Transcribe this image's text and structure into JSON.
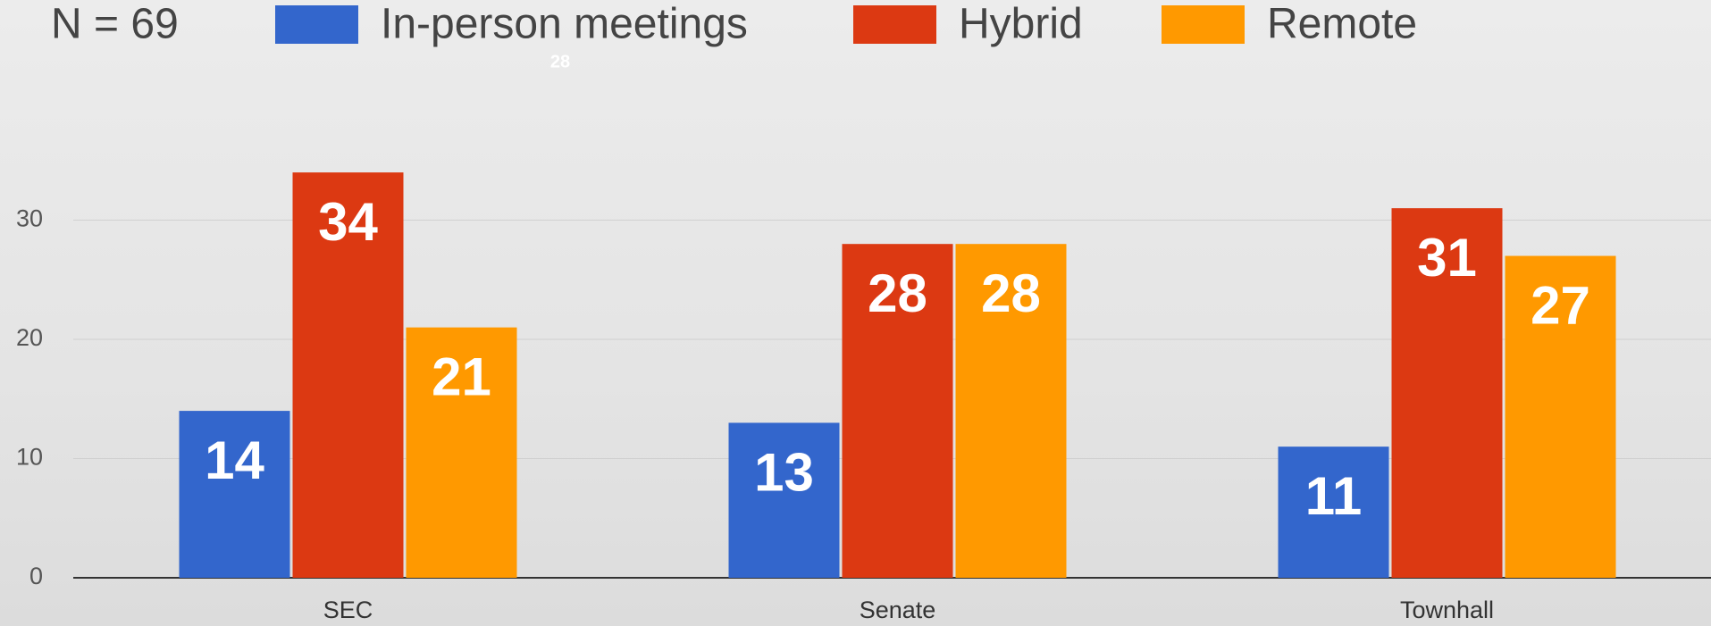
{
  "chart_data": {
    "type": "bar",
    "title": "N = 69",
    "annotation": "28",
    "categories": [
      "SEC",
      "Senate",
      "Townhall"
    ],
    "series": [
      {
        "name": "In-person meetings",
        "color": "#3366cc",
        "values": [
          14,
          13,
          11
        ]
      },
      {
        "name": "Hybrid",
        "color": "#dc3912",
        "values": [
          34,
          28,
          31
        ]
      },
      {
        "name": "Remote",
        "color": "#ff9900",
        "values": [
          21,
          28,
          27
        ]
      }
    ],
    "ylim": [
      0,
      40
    ],
    "yticks": [
      0,
      10,
      20,
      30
    ],
    "grid": true,
    "legend": "top"
  }
}
